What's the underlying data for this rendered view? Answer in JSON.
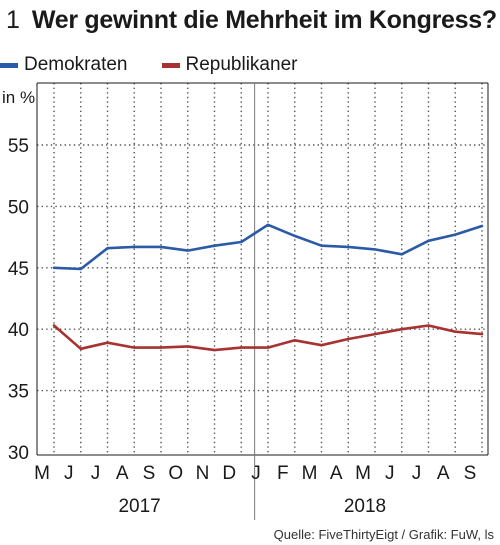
{
  "header": {
    "number": "1",
    "title": "Wer gewinnt die Mehrheit im Kongress?"
  },
  "legend": {
    "items": [
      {
        "label": "Demokraten",
        "color": "#2b5aa6"
      },
      {
        "label": "Republikaner",
        "color": "#a83232"
      }
    ]
  },
  "unit_label": "in %",
  "source": "Quelle: FiveThirtyEigt / Grafik: FuW, ls",
  "chart_data": {
    "type": "line",
    "x": [
      "M",
      "J",
      "J",
      "A",
      "S",
      "O",
      "N",
      "D",
      "J",
      "F",
      "M",
      "A",
      "M",
      "J",
      "J",
      "A",
      "S"
    ],
    "year_labels": [
      "2017",
      "2018"
    ],
    "ylim": [
      30,
      55
    ],
    "yticks": [
      30,
      35,
      40,
      45,
      50,
      55
    ],
    "grid": true,
    "legend_position": "top-left",
    "series": [
      {
        "name": "Demokraten",
        "color": "#2b5aa6",
        "points": [
          [
            0,
            45.0
          ],
          [
            1,
            44.9
          ],
          [
            2,
            46.6
          ],
          [
            3,
            46.7
          ],
          [
            4,
            46.7
          ],
          [
            5,
            46.4
          ],
          [
            6,
            46.8
          ],
          [
            7,
            47.1
          ],
          [
            8,
            48.5
          ],
          [
            9,
            47.6
          ],
          [
            10,
            46.8
          ],
          [
            11,
            46.7
          ],
          [
            12,
            46.5
          ],
          [
            13,
            46.1
          ],
          [
            14,
            47.2
          ],
          [
            15,
            47.7
          ],
          [
            16,
            48.4
          ]
        ]
      },
      {
        "name": "Republikaner",
        "color": "#a83232",
        "points": [
          [
            0,
            40.3
          ],
          [
            1,
            38.4
          ],
          [
            2,
            38.9
          ],
          [
            3,
            38.5
          ],
          [
            4,
            38.5
          ],
          [
            5,
            38.6
          ],
          [
            6,
            38.3
          ],
          [
            7,
            38.5
          ],
          [
            8,
            38.5
          ],
          [
            9,
            39.1
          ],
          [
            10,
            38.7
          ],
          [
            11,
            39.2
          ],
          [
            12,
            39.6
          ],
          [
            13,
            40.0
          ],
          [
            14,
            40.3
          ],
          [
            15,
            39.8
          ],
          [
            16,
            39.6
          ]
        ]
      }
    ]
  }
}
